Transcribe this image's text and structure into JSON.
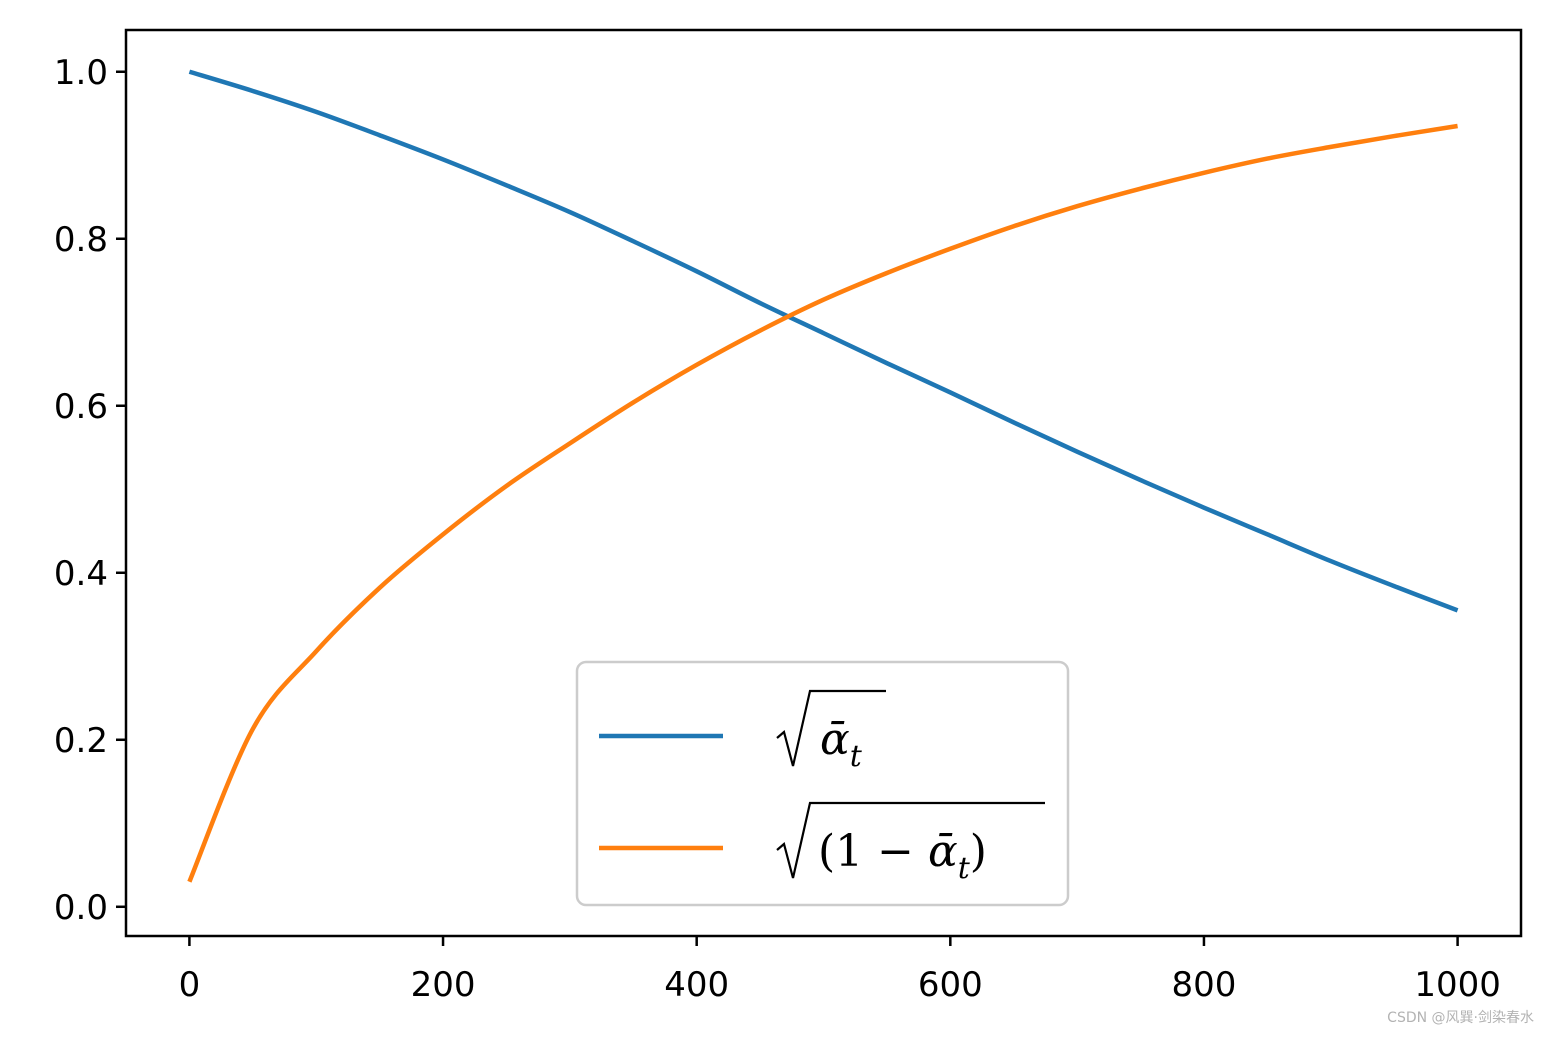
{
  "chart_data": {
    "type": "line",
    "title": "",
    "xlabel": "",
    "ylabel": "",
    "xlim": [
      -50,
      1050
    ],
    "ylim": [
      -0.035,
      1.05
    ],
    "xticks": [
      0,
      200,
      400,
      600,
      800,
      1000
    ],
    "xtick_labels": [
      "0",
      "200",
      "400",
      "600",
      "800",
      "1000"
    ],
    "yticks": [
      0.0,
      0.2,
      0.4,
      0.6,
      0.8,
      1.0
    ],
    "ytick_labels": [
      "0.0",
      "0.2",
      "0.4",
      "0.6",
      "0.8",
      "1.0"
    ],
    "grid": false,
    "legend_position": "lower-center",
    "x": [
      0,
      50,
      100,
      150,
      200,
      250,
      300,
      350,
      400,
      450,
      500,
      550,
      600,
      650,
      700,
      750,
      800,
      850,
      900,
      950,
      1000
    ],
    "series": [
      {
        "name": "√ᾱt",
        "legend_text": {
          "radicand": "ᾱ",
          "subscript": "t"
        },
        "color": "#1f77b4",
        "values": [
          1.0,
          0.977,
          0.952,
          0.924,
          0.895,
          0.864,
          0.832,
          0.797,
          0.761,
          0.723,
          0.687,
          0.651,
          0.616,
          0.58,
          0.545,
          0.511,
          0.478,
          0.446,
          0.414,
          0.384,
          0.355
        ]
      },
      {
        "name": "√(1 − ᾱt)",
        "legend_text": {
          "open": "(1 − ",
          "radicand": "ᾱ",
          "subscript": "t",
          "close": ")"
        },
        "color": "#ff7f0e",
        "values": [
          0.03,
          0.213,
          0.306,
          0.382,
          0.446,
          0.504,
          0.555,
          0.604,
          0.649,
          0.69,
          0.727,
          0.759,
          0.788,
          0.815,
          0.839,
          0.86,
          0.879,
          0.896,
          0.91,
          0.923,
          0.935
        ]
      }
    ]
  },
  "watermark": "CSDN @风巽·剑染春水"
}
